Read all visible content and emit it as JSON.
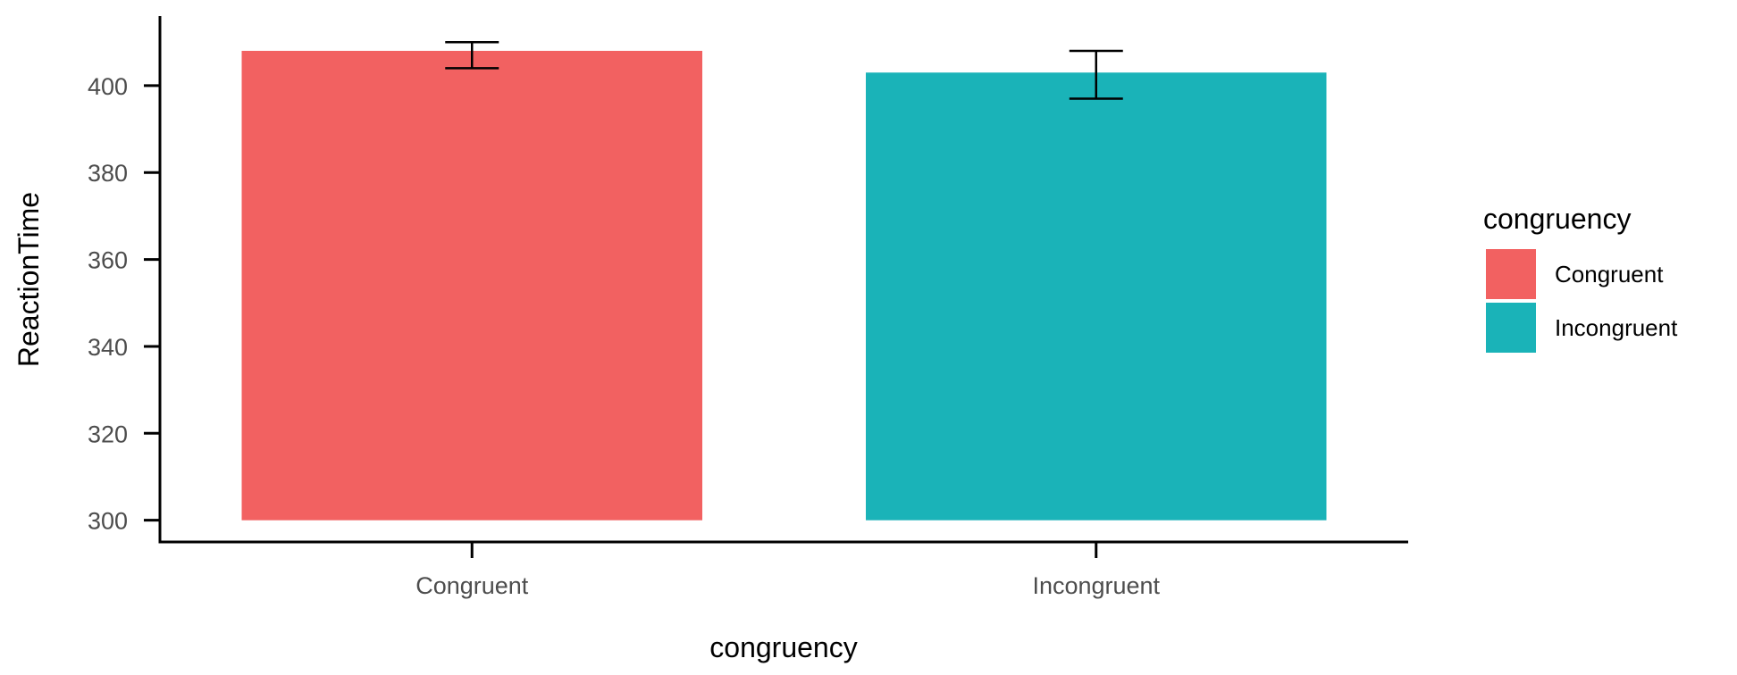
{
  "chart_data": {
    "type": "bar",
    "xlabel": "congruency",
    "ylabel": "ReactionTime",
    "categories": [
      "Congruent",
      "Incongruent"
    ],
    "values": [
      408,
      403
    ],
    "error_bars": [
      {
        "category": "Congruent",
        "low": 404,
        "high": 410
      },
      {
        "category": "Incongruent",
        "low": 397,
        "high": 408
      }
    ],
    "y_ticks": [
      300,
      320,
      340,
      360,
      380,
      400
    ],
    "ylim": [
      295,
      416
    ],
    "bar_base": 300,
    "grid": false,
    "legend": {
      "title": "congruency",
      "position": "right",
      "items": [
        {
          "label": "Congruent",
          "color": "#F26161"
        },
        {
          "label": "Incongruent",
          "color": "#1AB3B8"
        }
      ]
    },
    "colors": {
      "Congruent": "#F26161",
      "Incongruent": "#1AB3B8"
    }
  }
}
